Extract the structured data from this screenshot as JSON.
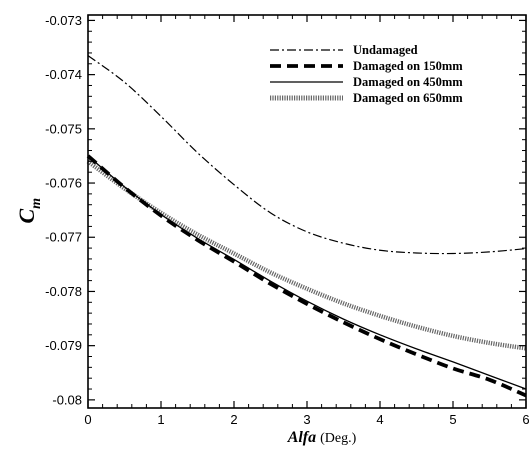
{
  "chart_data": {
    "type": "line",
    "title": "",
    "xlabel": "Alfa",
    "xlabel_unit": "(Deg.)",
    "ylabel": "C",
    "ylabel_sub": "m",
    "xlim": [
      0,
      6
    ],
    "ylim": [
      -0.08015,
      -0.0729
    ],
    "x_ticks": [
      0,
      1,
      2,
      3,
      4,
      5,
      6
    ],
    "x_tick_labels": [
      "0",
      "1",
      "2",
      "3",
      "4",
      "5",
      "6"
    ],
    "y_ticks": [
      -0.073,
      -0.074,
      -0.075,
      -0.076,
      -0.077,
      -0.078,
      -0.079,
      -0.08
    ],
    "y_tick_labels": [
      "-0.073",
      "-0.074",
      "-0.075",
      "-0.076",
      "-0.077",
      "-0.078",
      "-0.079",
      "-0.08"
    ],
    "grid": false,
    "legend_position": "top-right",
    "x": [
      0,
      0.5,
      1,
      1.5,
      2,
      2.5,
      3,
      3.5,
      4,
      4.5,
      5,
      5.5,
      6
    ],
    "series": [
      {
        "name": "Undamaged",
        "style": "dash-dot",
        "color": "#000000",
        "values": [
          -0.07365,
          -0.07414,
          -0.07477,
          -0.07544,
          -0.07603,
          -0.07655,
          -0.0769,
          -0.07711,
          -0.07724,
          -0.07729,
          -0.0773,
          -0.07727,
          -0.07721
        ]
      },
      {
        "name": "Damaged on 150mm",
        "style": "thick-dash",
        "color": "#000000",
        "values": [
          -0.0755,
          -0.07608,
          -0.0766,
          -0.07705,
          -0.07745,
          -0.07786,
          -0.07823,
          -0.07857,
          -0.07888,
          -0.07916,
          -0.07942,
          -0.07963,
          -0.07992
        ]
      },
      {
        "name": "Damaged on 450mm",
        "style": "solid",
        "color": "#000000",
        "values": [
          -0.0755,
          -0.07607,
          -0.07658,
          -0.07702,
          -0.07741,
          -0.07781,
          -0.07818,
          -0.07851,
          -0.0788,
          -0.07906,
          -0.0793,
          -0.07955,
          -0.0798
        ]
      },
      {
        "name": "Damaged on 650mm",
        "style": "dotted",
        "color": "#666666",
        "values": [
          -0.0756,
          -0.0761,
          -0.07655,
          -0.07695,
          -0.0773,
          -0.07765,
          -0.07795,
          -0.07822,
          -0.07845,
          -0.07865,
          -0.07882,
          -0.07895,
          -0.07905
        ]
      }
    ]
  }
}
